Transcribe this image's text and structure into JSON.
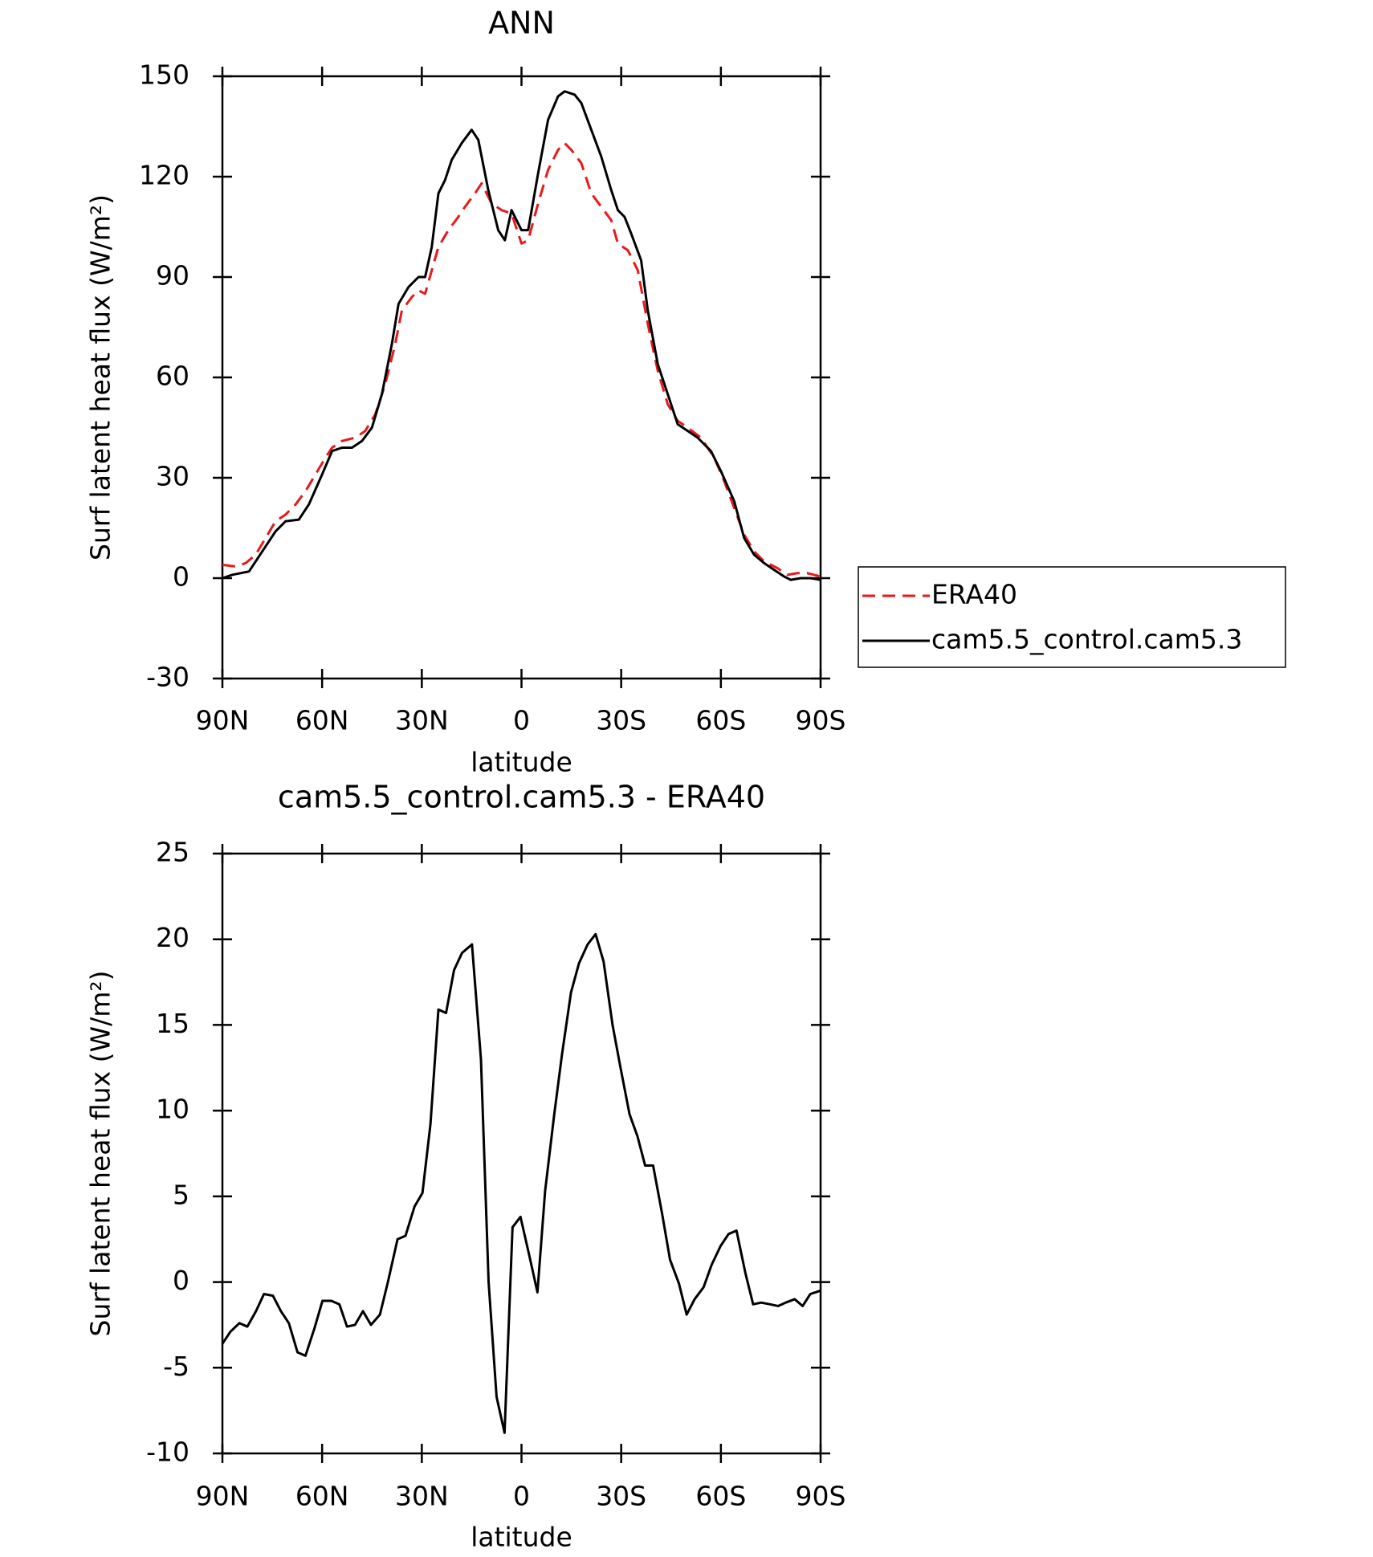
{
  "chart_data": [
    {
      "type": "line",
      "title": "ANN",
      "xlabel": "latitude",
      "ylabel": "Surf latent heat flux (W/m²)",
      "xlim": [
        90,
        -90
      ],
      "ylim": [
        -30,
        150
      ],
      "xticks": [
        {
          "value": 90,
          "label": "90N"
        },
        {
          "value": 60,
          "label": "60N"
        },
        {
          "value": 30,
          "label": "30N"
        },
        0,
        {
          "value": -30,
          "label": "30S"
        },
        {
          "value": -60,
          "label": "60S"
        },
        {
          "value": -90,
          "label": "90S"
        }
      ],
      "yticks": [
        -30,
        0,
        30,
        60,
        90,
        120,
        150
      ],
      "legend": "right",
      "series": [
        {
          "name": "ERA40",
          "color": "#e8191c",
          "dash": true,
          "x": [
            90,
            86,
            83,
            80,
            77,
            74,
            71,
            68,
            65,
            62,
            59,
            57,
            54,
            50,
            47,
            44,
            41,
            38,
            36,
            33,
            31,
            29,
            27,
            25,
            22,
            19,
            17,
            14,
            12,
            9,
            6,
            3,
            0,
            -2,
            -5,
            -8,
            -11,
            -13,
            -15,
            -18,
            -21,
            -24,
            -27,
            -29,
            -32,
            -35,
            -38,
            -41,
            -44,
            -47,
            -50,
            -54,
            -58,
            -61,
            -64,
            -67,
            -70,
            -73,
            -77,
            -80,
            -83,
            -86,
            -88,
            -90
          ],
          "values": [
            4,
            3.5,
            4.5,
            7,
            12,
            17,
            19,
            22,
            26,
            31,
            36,
            39,
            41,
            42,
            44,
            49,
            58,
            70,
            80,
            84,
            86,
            85,
            92,
            99,
            104,
            108,
            111,
            115,
            118,
            112,
            110,
            109,
            100,
            101,
            112,
            122,
            128,
            130,
            128,
            124,
            115,
            111,
            107,
            100,
            98,
            92,
            76,
            62,
            52,
            47,
            45,
            42,
            36,
            29,
            21,
            13,
            8,
            5,
            3,
            1,
            1.5,
            1.5,
            1,
            0.5
          ]
        },
        {
          "name": "cam5.5_control.cam5.3",
          "color": "#000000",
          "dash": false,
          "x": [
            90,
            87,
            82,
            78,
            74,
            71,
            67,
            64,
            60,
            57,
            54,
            51,
            48,
            45,
            42,
            39,
            37,
            34,
            31,
            29,
            27,
            25,
            23,
            21,
            18,
            15,
            13,
            10,
            7,
            5,
            3,
            0,
            -2,
            -5,
            -8,
            -11,
            -13,
            -16,
            -18,
            -21,
            -24,
            -27,
            -29,
            -31,
            -33,
            -36,
            -38,
            -41,
            -44,
            -47,
            -50,
            -53,
            -57,
            -60,
            -64,
            -67,
            -70,
            -73,
            -76,
            -79,
            -81,
            -84,
            -87,
            -90
          ],
          "values": [
            0,
            1,
            2,
            8,
            14,
            17,
            17.5,
            22,
            31,
            38,
            39,
            39,
            41,
            45,
            55,
            70,
            82,
            87,
            90,
            90,
            99,
            115,
            119,
            125,
            130,
            134,
            131,
            116,
            104,
            101,
            110,
            104,
            104,
            121,
            137,
            144,
            145.5,
            144.5,
            142,
            134,
            126,
            116,
            110,
            108,
            103,
            95,
            80,
            64,
            55,
            46,
            44,
            42,
            38,
            32,
            23,
            12,
            7,
            4.5,
            2.5,
            0.5,
            -0.5,
            0,
            0,
            -0.5
          ]
        }
      ]
    },
    {
      "type": "line",
      "title": "cam5.5_control.cam5.3 - ERA40",
      "xlabel": "latitude",
      "ylabel": "Surf latent heat flux (W/m²)",
      "xlim": [
        90,
        -90
      ],
      "ylim": [
        -10,
        25
      ],
      "xticks": [
        {
          "value": 90,
          "label": "90N"
        },
        {
          "value": 60,
          "label": "60N"
        },
        {
          "value": 30,
          "label": "30N"
        },
        0,
        {
          "value": -30,
          "label": "30S"
        },
        {
          "value": -60,
          "label": "60S"
        },
        {
          "value": -90,
          "label": "90S"
        }
      ],
      "yticks": [
        -10,
        -5,
        0,
        5,
        10,
        15,
        20,
        25
      ],
      "color": "#000000",
      "x": [
        90,
        87.6,
        84.9,
        82.5,
        79.9,
        77.5,
        74.8,
        72.4,
        70,
        67.4,
        65,
        62.3,
        59.9,
        57.2,
        54.8,
        52.5,
        50.1,
        47.7,
        45.3,
        42.6,
        40.2,
        37.3,
        34.9,
        32.2,
        29.8,
        27.4,
        25,
        22.7,
        20.3,
        17.9,
        14.9,
        12.2,
        9.9,
        7.5,
        5.1,
        2.7,
        0.3,
        -2.4,
        -4.8,
        -7.1,
        -9.8,
        -12.2,
        -14.9,
        -17.3,
        -19.9,
        -22.3,
        -24.7,
        -27.4,
        -29.8,
        -32.5,
        -34.9,
        -37.2,
        -39.6,
        -42.3,
        -44.7,
        -47.4,
        -49.7,
        -52.1,
        -54.8,
        -57.2,
        -59.9,
        -62.3,
        -64.7,
        -67.4,
        -69.7,
        -72.1,
        -74.8,
        -77.2,
        -79.5,
        -82.2,
        -84.6,
        -86.9,
        -90
      ],
      "values": [
        -3.6,
        -2.9,
        -2.4,
        -2.6,
        -1.7,
        -0.7,
        -0.8,
        -1.7,
        -2.4,
        -4.1,
        -4.3,
        -2.7,
        -1.1,
        -1.1,
        -1.3,
        -2.6,
        -2.5,
        -1.7,
        -2.5,
        -1.9,
        0,
        2.5,
        2.7,
        4.4,
        5.2,
        9.2,
        15.9,
        15.7,
        18.2,
        19.2,
        19.7,
        13,
        0,
        -6.7,
        -8.8,
        3.2,
        3.8,
        1.5,
        -0.6,
        5.3,
        9.7,
        13.3,
        16.9,
        18.6,
        19.7,
        20.3,
        18.7,
        15,
        12.5,
        9.8,
        8.5,
        6.8,
        6.8,
        4,
        1.3,
        -0.1,
        -1.9,
        -1,
        -0.3,
        1,
        2.1,
        2.8,
        3,
        0.5,
        -1.3,
        -1.2,
        -1.3,
        -1.4,
        -1.2,
        -1,
        -1.4,
        -0.7,
        -0.5
      ]
    }
  ]
}
